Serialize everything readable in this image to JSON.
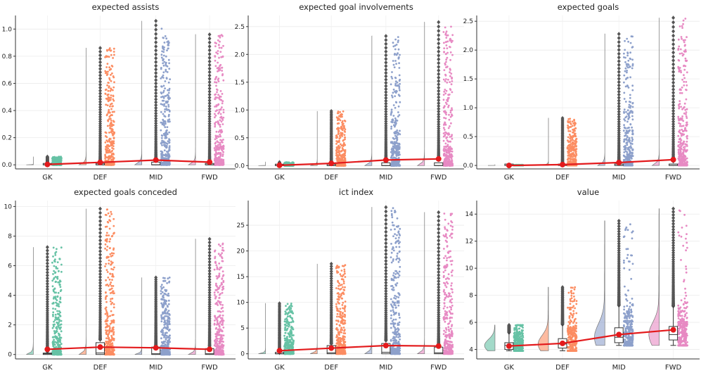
{
  "chart_data": [
    {
      "type": "raincloud",
      "title": "expected assists",
      "categories": [
        "GK",
        "DEF",
        "MID",
        "FWD"
      ],
      "ylim": [
        -0.03,
        1.1
      ],
      "yticks": [
        0.0,
        0.2,
        0.4,
        0.6,
        0.8,
        1.0
      ],
      "tick_labels": [
        "0.0",
        "0.2",
        "0.4",
        "0.6",
        "0.8",
        "1.0"
      ],
      "max": [
        0.06,
        0.86,
        1.06,
        0.96
      ],
      "median": [
        0.0,
        0.0,
        0.0,
        0.0
      ],
      "q3": [
        0.0,
        0.01,
        0.02,
        0.01
      ],
      "mean": [
        0.003,
        0.018,
        0.035,
        0.02
      ]
    },
    {
      "type": "raincloud",
      "title": "expected goal involvements",
      "categories": [
        "GK",
        "DEF",
        "MID",
        "FWD"
      ],
      "ylim": [
        -0.06,
        2.7
      ],
      "yticks": [
        0.0,
        0.5,
        1.0,
        1.5,
        2.0,
        2.5
      ],
      "tick_labels": [
        "0.0",
        "0.5",
        "1.0",
        "1.5",
        "2.0",
        "2.5"
      ],
      "max": [
        0.06,
        0.98,
        2.33,
        2.58
      ],
      "median": [
        0.0,
        0.0,
        0.0,
        0.0
      ],
      "q3": [
        0.0,
        0.02,
        0.05,
        0.05
      ],
      "mean": [
        0.005,
        0.04,
        0.1,
        0.12
      ]
    },
    {
      "type": "raincloud",
      "title": "expected goals",
      "categories": [
        "GK",
        "DEF",
        "MID",
        "FWD"
      ],
      "ylim": [
        -0.06,
        2.6
      ],
      "yticks": [
        0.0,
        0.5,
        1.0,
        1.5,
        2.0,
        2.5
      ],
      "tick_labels": [
        "0.0",
        "0.5",
        "1.0",
        "1.5",
        "2.0",
        "2.5"
      ],
      "max": [
        0.01,
        0.82,
        2.28,
        2.56
      ],
      "median": [
        0.0,
        0.0,
        0.0,
        0.0
      ],
      "q3": [
        0.0,
        0.0,
        0.02,
        0.02
      ],
      "mean": [
        0.0,
        0.015,
        0.05,
        0.1
      ]
    },
    {
      "type": "raincloud",
      "title": "expected goals conceded",
      "categories": [
        "GK",
        "DEF",
        "MID",
        "FWD"
      ],
      "ylim": [
        -0.3,
        10.4
      ],
      "yticks": [
        0,
        2,
        4,
        6,
        8,
        10
      ],
      "tick_labels": [
        "0",
        "2",
        "4",
        "6",
        "8",
        "10"
      ],
      "max": [
        7.25,
        9.85,
        5.2,
        7.8
      ],
      "median": [
        0.05,
        0.1,
        0.05,
        0.05
      ],
      "q3": [
        0.05,
        0.8,
        0.5,
        0.4
      ],
      "mean": [
        0.35,
        0.5,
        0.45,
        0.35
      ]
    },
    {
      "type": "raincloud",
      "title": "ict index",
      "categories": [
        "GK",
        "DEF",
        "MID",
        "FWD"
      ],
      "ylim": [
        -1.0,
        29.8
      ],
      "yticks": [
        0,
        5,
        10,
        15,
        20,
        25
      ],
      "tick_labels": [
        "0",
        "5",
        "10",
        "15",
        "20",
        "25"
      ],
      "max": [
        9.8,
        17.5,
        28.5,
        27.5
      ],
      "median": [
        0.0,
        0.2,
        0.3,
        0.2
      ],
      "q3": [
        0.0,
        1.6,
        2.0,
        1.3
      ],
      "mean": [
        0.6,
        1.1,
        1.6,
        1.5
      ]
    },
    {
      "type": "raincloud",
      "title": "value",
      "categories": [
        "GK",
        "DEF",
        "MID",
        "FWD"
      ],
      "ylim": [
        3.3,
        15.0
      ],
      "yticks": [
        4,
        6,
        8,
        10,
        12,
        14
      ],
      "tick_labels": [
        "4",
        "6",
        "8",
        "10",
        "12",
        "14"
      ],
      "min": [
        3.9,
        3.9,
        4.3,
        4.3
      ],
      "max": [
        5.8,
        8.6,
        13.5,
        14.4
      ],
      "q1": [
        4.0,
        4.1,
        4.5,
        4.7
      ],
      "median": [
        4.3,
        4.4,
        4.9,
        5.1
      ],
      "q3": [
        4.5,
        4.8,
        5.6,
        5.7
      ],
      "mean": [
        4.25,
        4.45,
        5.1,
        5.45
      ]
    }
  ],
  "colors": {
    "GK": "#66c2a5",
    "DEF": "#fc8d62",
    "MID": "#8da0cb",
    "FWD": "#e78ac3",
    "mean_line": "#e31a1c",
    "outlier": "#555555"
  }
}
